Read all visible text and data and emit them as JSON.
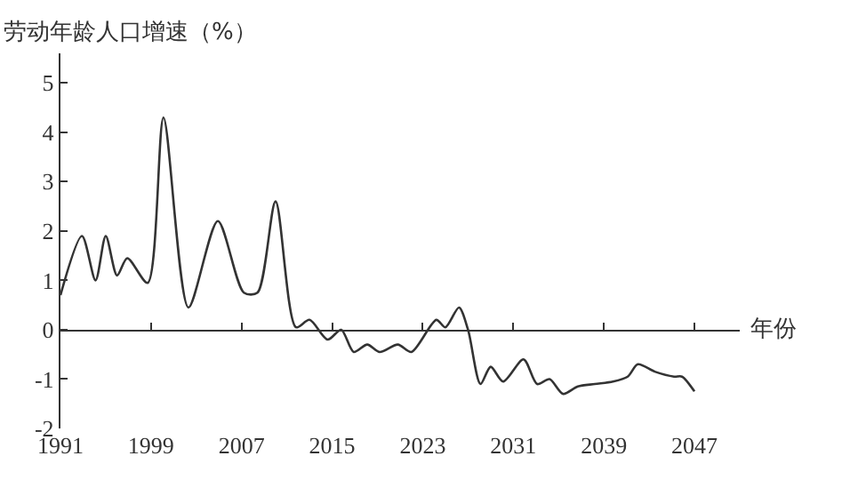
{
  "chart_data": {
    "type": "line",
    "xlabel": "年份",
    "ylabel": "劳动年龄人口增速（%）",
    "x": [
      1991,
      1992.9,
      1994.1,
      1995,
      1996,
      1996.9,
      1998.7,
      2000.1,
      2002.3,
      2004.9,
      2007.2,
      2008.4,
      2010,
      2011.8,
      2013,
      2014.6,
      2015.8,
      2016.9,
      2018.1,
      2019.2,
      2020.8,
      2022,
      2024.2,
      2025,
      2026.2,
      2027,
      2028.1,
      2029,
      2030.1,
      2031.9,
      2033.1,
      2034.2,
      2035.4,
      2036.7,
      2038.2,
      2039.8,
      2041.1,
      2042,
      2043.5,
      2045.2,
      2045.9,
      2047
    ],
    "values": [
      0.7,
      1.9,
      1.0,
      1.9,
      1.1,
      1.45,
      0.95,
      4.3,
      0.45,
      2.2,
      0.75,
      0.75,
      2.6,
      0.05,
      0.2,
      -0.2,
      0,
      -0.45,
      -0.3,
      -0.45,
      -0.3,
      -0.45,
      0.2,
      0.05,
      0.45,
      0,
      -1.1,
      -0.75,
      -1.05,
      -0.6,
      -1.1,
      -1.0,
      -1.3,
      -1.15,
      -1.1,
      -1.05,
      -0.95,
      -0.7,
      -0.85,
      -0.95,
      -0.95,
      -1.25
    ],
    "color": "#333333",
    "line_style": "solid",
    "marker": "none",
    "xlim": [
      1991,
      2051
    ],
    "ylim": [
      -2,
      5.6
    ],
    "xticks": [
      1991,
      1999,
      2007,
      2015,
      2023,
      2031,
      2039,
      2047
    ],
    "yticks": [
      -2,
      -1,
      0,
      1,
      2,
      3,
      4,
      5
    ]
  }
}
